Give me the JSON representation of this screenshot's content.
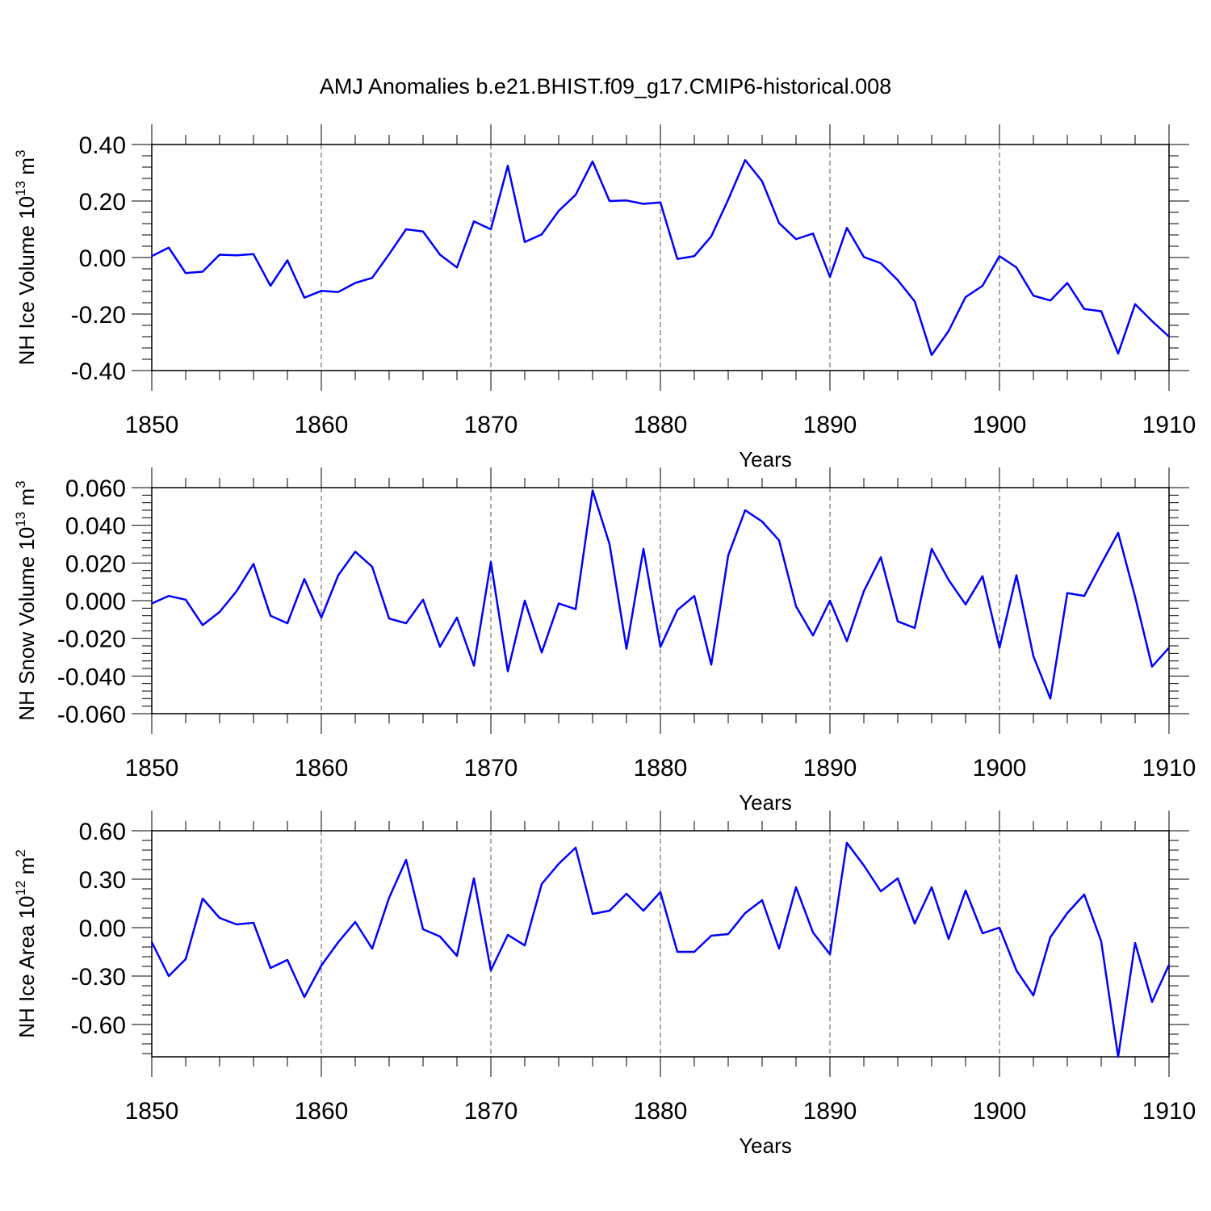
{
  "figure_title": "AMJ Anomalies b.e21.BHIST.f09_g17.CMIP6-historical.008",
  "chart_data": [
    {
      "type": "line",
      "xlabel": "Years",
      "ylabel": "NH Ice Volume 10",
      "ylabel_exponent": "13",
      "ylabel_unit": " m",
      "ylabel_unit_exponent": "3",
      "xlim": [
        1850,
        1910
      ],
      "ylim": [
        -0.4,
        0.4
      ],
      "xticks": [
        1850,
        1860,
        1870,
        1880,
        1890,
        1900,
        1910
      ],
      "yticks": [
        -0.4,
        -0.2,
        0.0,
        0.2,
        0.4
      ],
      "ytick_labels": [
        "-0.40",
        "-0.20",
        "0.00",
        "0.20",
        "0.40"
      ],
      "series_color": "#0000ff",
      "grid": "dashed vertical at major x ticks",
      "x": [
        1850,
        1851,
        1852,
        1853,
        1854,
        1855,
        1856,
        1857,
        1858,
        1859,
        1860,
        1861,
        1862,
        1863,
        1864,
        1865,
        1866,
        1867,
        1868,
        1869,
        1870,
        1871,
        1872,
        1873,
        1874,
        1875,
        1876,
        1877,
        1878,
        1879,
        1880,
        1881,
        1882,
        1883,
        1884,
        1885,
        1886,
        1887,
        1888,
        1889,
        1890,
        1891,
        1892,
        1893,
        1894,
        1895,
        1896,
        1897,
        1898,
        1899,
        1900,
        1901,
        1902,
        1903,
        1904,
        1905,
        1906,
        1907,
        1908,
        1909,
        1910
      ],
      "y": [
        0.005,
        0.035,
        -0.055,
        -0.05,
        0.01,
        0.008,
        0.012,
        -0.1,
        -0.01,
        -0.142,
        -0.118,
        -0.122,
        -0.09,
        -0.072,
        0.012,
        0.1,
        0.092,
        0.01,
        -0.035,
        0.128,
        0.1,
        0.325,
        0.055,
        0.082,
        0.165,
        0.222,
        0.34,
        0.2,
        0.202,
        0.19,
        0.195,
        -0.005,
        0.005,
        0.075,
        0.205,
        0.345,
        0.27,
        0.122,
        0.065,
        0.085,
        -0.068,
        0.105,
        0.002,
        -0.02,
        -0.08,
        -0.155,
        -0.345,
        -0.26,
        -0.14,
        -0.1,
        0.005,
        -0.035,
        -0.135,
        -0.152,
        -0.09,
        -0.182,
        -0.19,
        -0.34,
        -0.165,
        -0.225,
        -0.28
      ]
    },
    {
      "type": "line",
      "xlabel": "Years",
      "ylabel": "NH Snow Volume 10",
      "ylabel_exponent": "13",
      "ylabel_unit": " m",
      "ylabel_unit_exponent": "3",
      "xlim": [
        1850,
        1910
      ],
      "ylim": [
        -0.06,
        0.06
      ],
      "xticks": [
        1850,
        1860,
        1870,
        1880,
        1890,
        1900,
        1910
      ],
      "yticks": [
        -0.06,
        -0.04,
        -0.02,
        0.0,
        0.02,
        0.04,
        0.06
      ],
      "ytick_labels": [
        "-0.060",
        "-0.040",
        "-0.020",
        "0.000",
        "0.020",
        "0.040",
        "0.060"
      ],
      "series_color": "#0000ff",
      "grid": "dashed vertical at major x ticks",
      "x": [
        1850,
        1851,
        1852,
        1853,
        1854,
        1855,
        1856,
        1857,
        1858,
        1859,
        1860,
        1861,
        1862,
        1863,
        1864,
        1865,
        1866,
        1867,
        1868,
        1869,
        1870,
        1871,
        1872,
        1873,
        1874,
        1875,
        1876,
        1877,
        1878,
        1879,
        1880,
        1881,
        1882,
        1883,
        1884,
        1885,
        1886,
        1887,
        1888,
        1889,
        1890,
        1891,
        1892,
        1893,
        1894,
        1895,
        1896,
        1897,
        1898,
        1899,
        1900,
        1901,
        1902,
        1903,
        1904,
        1905,
        1906,
        1907,
        1908,
        1909,
        1910
      ],
      "y": [
        -0.0015,
        0.0025,
        0.0005,
        -0.013,
        -0.006,
        0.005,
        0.0195,
        -0.008,
        -0.012,
        0.0115,
        -0.009,
        0.0135,
        0.026,
        0.018,
        -0.0095,
        -0.012,
        0.0005,
        -0.0245,
        -0.009,
        -0.0345,
        0.0205,
        -0.0375,
        0.0,
        -0.0275,
        -0.0015,
        -0.0045,
        0.0585,
        0.03,
        -0.0255,
        0.0275,
        -0.0245,
        -0.005,
        0.0025,
        -0.034,
        0.024,
        0.048,
        0.042,
        0.032,
        -0.003,
        -0.0185,
        0.0,
        -0.0215,
        0.005,
        0.023,
        -0.011,
        -0.0145,
        0.0275,
        0.011,
        -0.002,
        0.013,
        -0.025,
        0.0135,
        -0.0295,
        -0.052,
        0.004,
        0.0025,
        0.0195,
        0.036,
        0.002,
        -0.035,
        -0.025
      ]
    },
    {
      "type": "line",
      "xlabel": "Years",
      "ylabel": "NH Ice Area 10",
      "ylabel_exponent": "12",
      "ylabel_unit": " m",
      "ylabel_unit_exponent": "2",
      "xlim": [
        1850,
        1910
      ],
      "ylim": [
        -0.8,
        0.6
      ],
      "xticks": [
        1850,
        1860,
        1870,
        1880,
        1890,
        1900,
        1910
      ],
      "yticks": [
        -0.6,
        -0.3,
        0.0,
        0.3,
        0.6
      ],
      "ytick_labels": [
        "-0.60",
        "-0.30",
        "0.00",
        "0.30",
        "0.60"
      ],
      "series_color": "#0000ff",
      "grid": "dashed vertical at major x ticks",
      "x": [
        1850,
        1851,
        1852,
        1853,
        1854,
        1855,
        1856,
        1857,
        1858,
        1859,
        1860,
        1861,
        1862,
        1863,
        1864,
        1865,
        1866,
        1867,
        1868,
        1869,
        1870,
        1871,
        1872,
        1873,
        1874,
        1875,
        1876,
        1877,
        1878,
        1879,
        1880,
        1881,
        1882,
        1883,
        1884,
        1885,
        1886,
        1887,
        1888,
        1889,
        1890,
        1891,
        1892,
        1893,
        1894,
        1895,
        1896,
        1897,
        1898,
        1899,
        1900,
        1901,
        1902,
        1903,
        1904,
        1905,
        1906,
        1907,
        1908,
        1909,
        1910
      ],
      "y": [
        -0.09,
        -0.3,
        -0.195,
        0.18,
        0.06,
        0.02,
        0.03,
        -0.25,
        -0.2,
        -0.43,
        -0.235,
        -0.09,
        0.035,
        -0.13,
        0.185,
        0.42,
        -0.01,
        -0.055,
        -0.175,
        0.305,
        -0.265,
        -0.045,
        -0.11,
        0.27,
        0.395,
        0.495,
        0.085,
        0.105,
        0.21,
        0.105,
        0.22,
        -0.15,
        -0.15,
        -0.05,
        -0.04,
        0.09,
        0.17,
        -0.13,
        0.25,
        -0.03,
        -0.165,
        0.525,
        0.385,
        0.225,
        0.305,
        0.025,
        0.25,
        -0.07,
        0.23,
        -0.035,
        0.0,
        -0.265,
        -0.42,
        -0.06,
        0.09,
        0.205,
        -0.085,
        -0.8,
        -0.095,
        -0.46,
        -0.23
      ]
    }
  ]
}
